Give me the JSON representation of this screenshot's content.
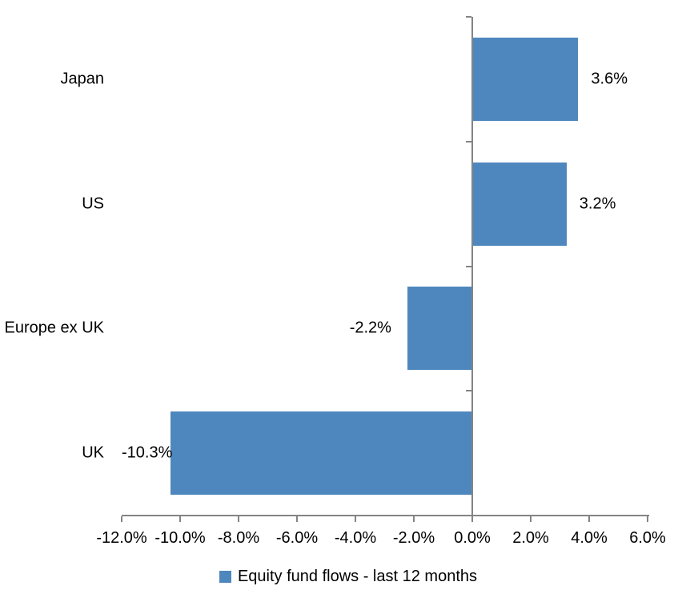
{
  "chart_data": {
    "type": "bar",
    "orientation": "horizontal",
    "title": "",
    "categories": [
      "Japan",
      "US",
      "Europe ex UK",
      "UK"
    ],
    "values": [
      3.6,
      3.2,
      -2.2,
      -10.3
    ],
    "data_labels": [
      "3.6%",
      "3.2%",
      "-2.2%",
      "-10.3%"
    ],
    "series": [
      {
        "name": "Equity fund flows - last 12 months",
        "values": [
          3.6,
          3.2,
          -2.2,
          -10.3
        ]
      }
    ],
    "x_axis": {
      "min": -12,
      "max": 6,
      "step": 2,
      "tick_labels": [
        "-12.0%",
        "-10.0%",
        "-8.0%",
        "-6.0%",
        "-4.0%",
        "-2.0%",
        "0.0%",
        "2.0%",
        "4.0%",
        "6.0%"
      ]
    },
    "y_axis": {
      "label": ""
    },
    "grid": false,
    "legend": {
      "position": "bottom",
      "entries": [
        "Equity fund flows - last 12 months"
      ]
    },
    "colors": {
      "bar": "#4E87BD",
      "axis": "#848484",
      "text": "#000000",
      "background": "#FFFFFF"
    }
  }
}
